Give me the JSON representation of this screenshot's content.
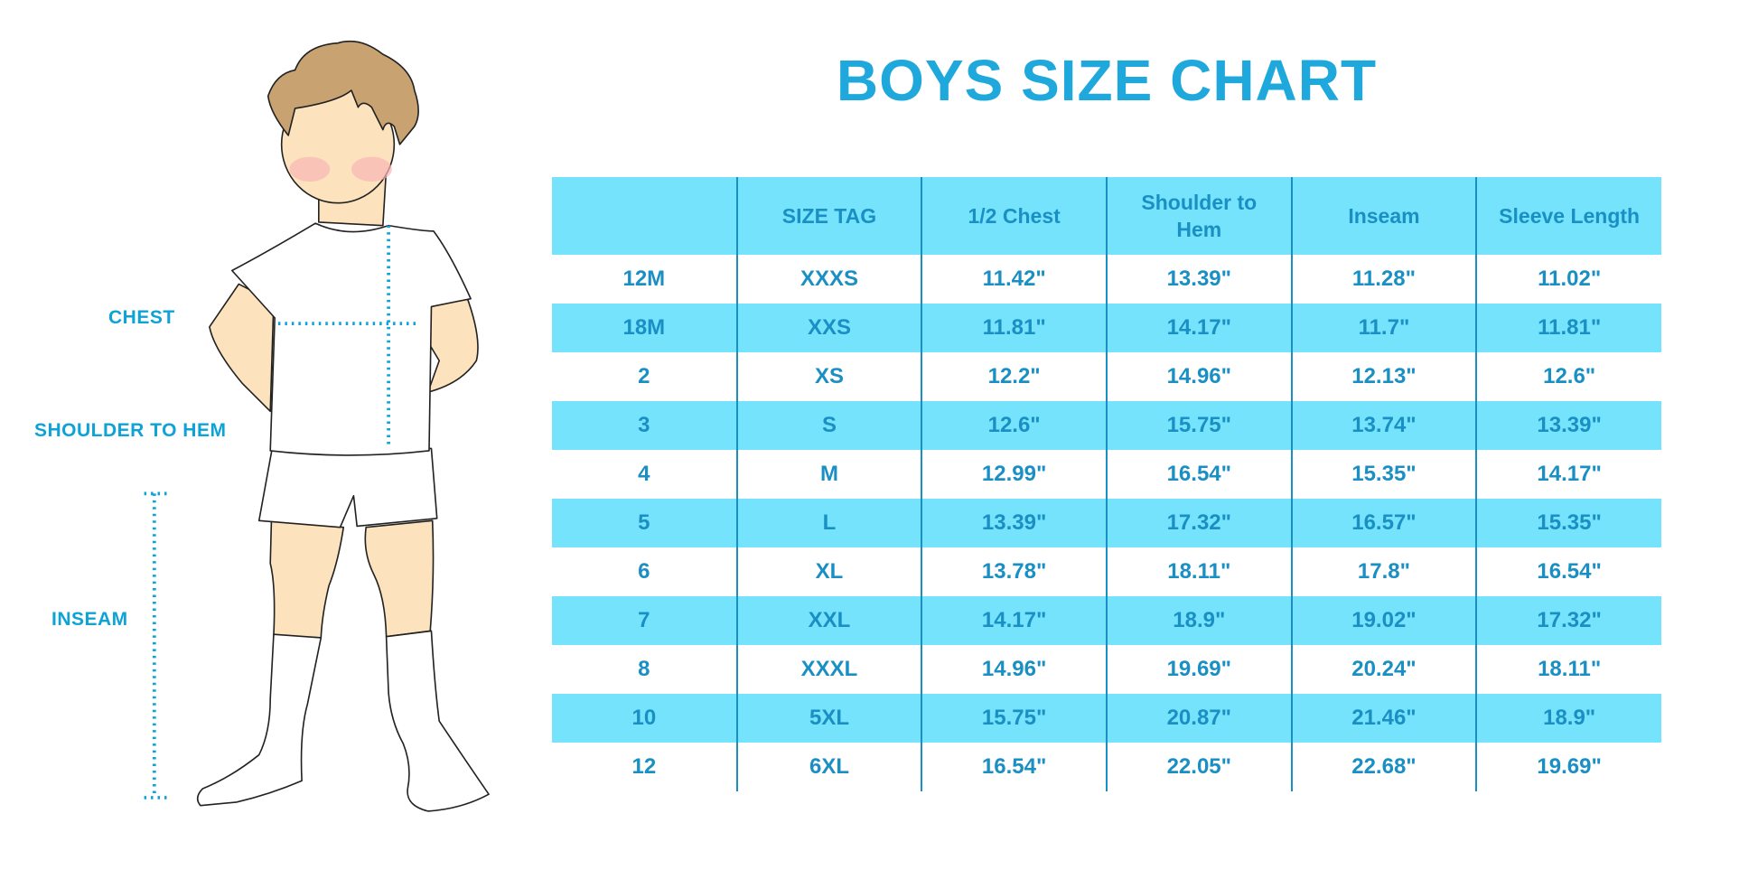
{
  "title": "BOYS SIZE CHART",
  "figure_labels": {
    "chest": "CHEST",
    "shoulder_to_hem": "SHOULDER TO HEM",
    "inseam": "INSEAM"
  },
  "colors": {
    "title": "#1fa8dc",
    "text": "#1a8fc4",
    "row_fill": "#76e3fd",
    "measure_lines": "#0ea3d6",
    "hair": "#c9a272",
    "skin": "#fde3bd"
  },
  "table": {
    "headers": [
      "",
      "SIZE TAG",
      "1/2 Chest",
      "Shoulder to Hem",
      "Inseam",
      "Sleeve Length"
    ],
    "rows": [
      [
        "12M",
        "XXXS",
        "11.42\"",
        "13.39\"",
        "11.28\"",
        "11.02\""
      ],
      [
        "18M",
        "XXS",
        "11.81\"",
        "14.17\"",
        "11.7\"",
        "11.81\""
      ],
      [
        "2",
        "XS",
        "12.2\"",
        "14.96\"",
        "12.13\"",
        "12.6\""
      ],
      [
        "3",
        "S",
        "12.6\"",
        "15.75\"",
        "13.74\"",
        "13.39\""
      ],
      [
        "4",
        "M",
        "12.99\"",
        "16.54\"",
        "15.35\"",
        "14.17\""
      ],
      [
        "5",
        "L",
        "13.39\"",
        "17.32\"",
        "16.57\"",
        "15.35\""
      ],
      [
        "6",
        "XL",
        "13.78\"",
        "18.11\"",
        "17.8\"",
        "16.54\""
      ],
      [
        "7",
        "XXL",
        "14.17\"",
        "18.9\"",
        "19.02\"",
        "17.32\""
      ],
      [
        "8",
        "XXXL",
        "14.96\"",
        "19.69\"",
        "20.24\"",
        "18.11\""
      ],
      [
        "10",
        "5XL",
        "15.75\"",
        "20.87\"",
        "21.46\"",
        "18.9\""
      ],
      [
        "12",
        "6XL",
        "16.54\"",
        "22.05\"",
        "22.68\"",
        "19.69\""
      ]
    ]
  }
}
